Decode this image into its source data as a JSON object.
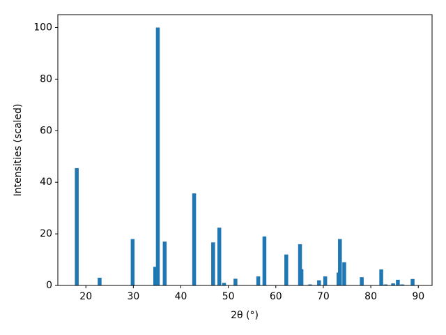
{
  "chart_data": {
    "type": "bar",
    "x_label": "2θ (°)",
    "y_label": "Intensities (scaled)",
    "x": [
      18.09,
      22.9,
      29.85,
      34.6,
      35.15,
      36.6,
      42.8,
      46.8,
      48.1,
      49.1,
      51.5,
      56.3,
      57.6,
      62.2,
      65.1,
      65.4,
      67.2,
      69.1,
      70.4,
      73.2,
      73.5,
      74.4,
      78.1,
      82.2,
      83.1,
      84.7,
      85.7,
      86.6,
      88.8
    ],
    "values": [
      45.5,
      3,
      18,
      7.2,
      100,
      17,
      35.7,
      16.7,
      22.4,
      1,
      2.6,
      3.5,
      19,
      12,
      16,
      6.3,
      0.4,
      2,
      3.5,
      5,
      18,
      9,
      3.2,
      6.2,
      0.4,
      0.8,
      2.2,
      0.4,
      2.5
    ],
    "color": "#1f77b4",
    "xlim": [
      14.1,
      92.9
    ],
    "xticks": [
      20,
      30,
      40,
      50,
      60,
      70,
      80,
      90
    ],
    "ylim": [
      0,
      105
    ],
    "yticks": [
      0,
      20,
      40,
      60,
      80,
      100
    ],
    "grid": false
  }
}
